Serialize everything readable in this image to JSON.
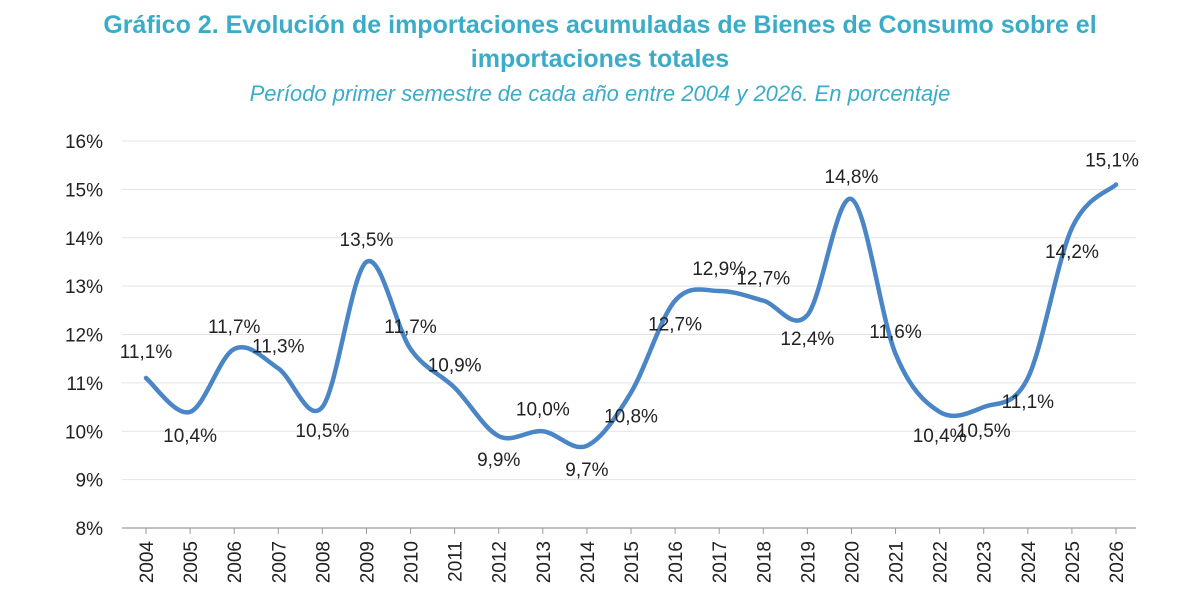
{
  "chart_data": {
    "type": "line",
    "title_line1": "Gráfico 2. Evolución de importaciones acumuladas de Bienes de Consumo sobre el",
    "title_line2": "importaciones totales",
    "subtitle": "Período primer semestre de cada año entre 2004 y 2026. En porcentaje",
    "xlabel": "",
    "ylabel": "",
    "ylim": [
      8,
      16
    ],
    "yticks": [
      "8%",
      "9%",
      "10%",
      "11%",
      "12%",
      "13%",
      "14%",
      "15%",
      "16%"
    ],
    "grid": true,
    "legend": "none",
    "line_color": "#4A86C5",
    "categories": [
      "2004",
      "2005",
      "2006",
      "2007",
      "2008",
      "2009",
      "2010",
      "2011",
      "2012",
      "2013",
      "2014",
      "2015",
      "2016",
      "2017",
      "2018",
      "2019",
      "2020",
      "2021",
      "2022",
      "2023",
      "2024",
      "2025",
      "2026"
    ],
    "values": [
      11.1,
      10.4,
      11.7,
      11.3,
      10.5,
      13.5,
      11.7,
      10.9,
      9.9,
      10.0,
      9.7,
      10.8,
      12.7,
      12.9,
      12.7,
      12.4,
      14.8,
      11.6,
      10.4,
      10.5,
      11.1,
      14.2,
      15.1
    ],
    "labels": [
      "11,1%",
      "10,4%",
      "11,7%",
      "11,3%",
      "10,5%",
      "13,5%",
      "11,7%",
      "10,9%",
      "9,9%",
      "10,0%",
      "9,7%",
      "10,8%",
      "12,7%",
      "12,9%",
      "12,7%",
      "12,4%",
      "14,8%",
      "11,6%",
      "10,4%",
      "10,5%",
      "11,1%",
      "14,2%",
      "15,1%"
    ]
  }
}
